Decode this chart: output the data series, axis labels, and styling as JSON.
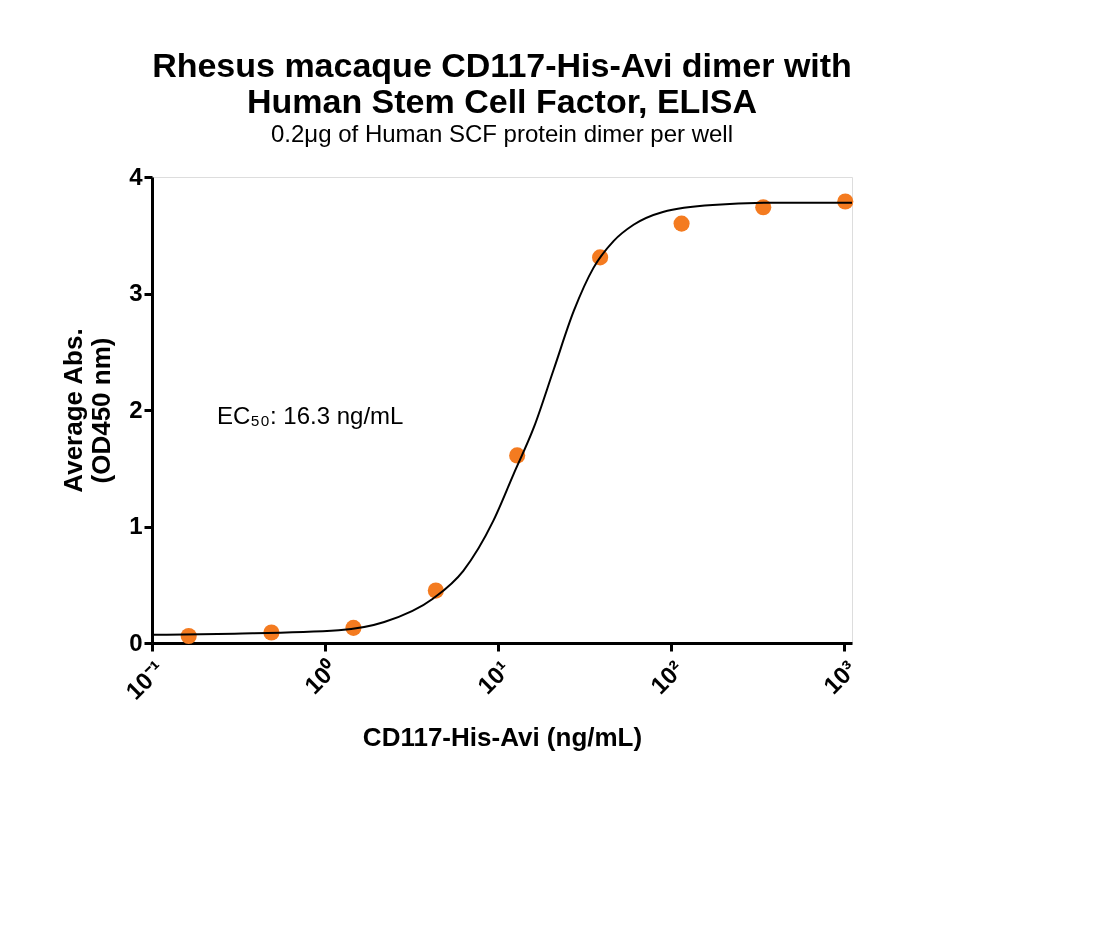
{
  "chart_data": {
    "type": "scatter",
    "title": "Rhesus macaque CD117-His-Avi dimer with Human Stem Cell Factor, ELISA",
    "subtitle": "0.2μg of Human SCF protein dimer per well",
    "xlabel": "CD117-His-Avi  (ng/mL)",
    "ylabel": "Average Abs. (OD450 nm)",
    "log": "x",
    "xlim": [
      0.1,
      1111
    ],
    "xticks": [
      {
        "value": 0.1,
        "label": "10⁻¹"
      },
      {
        "value": 1,
        "label": "10⁰"
      },
      {
        "value": 10,
        "label": "10¹"
      },
      {
        "value": 100,
        "label": "10²"
      },
      {
        "value": 1000,
        "label": "10³"
      }
    ],
    "ylim": [
      0,
      4
    ],
    "yticks": [
      0,
      1,
      2,
      3,
      4
    ],
    "grid": false,
    "annotations": [
      "EC₅₀: 16.3 ng/mL"
    ],
    "series": [
      {
        "color": "#f47b20",
        "marker": "circle",
        "x": [
          0.163,
          0.49,
          1.46,
          4.37,
          12.9,
          38.9,
          115,
          341,
          1016
        ],
        "values": [
          0.06,
          0.09,
          0.13,
          0.45,
          1.61,
          3.31,
          3.6,
          3.74,
          3.79
        ]
      },
      {
        "type": "line",
        "color": "#000000",
        "marker": "none",
        "line_style": "solid",
        "x": [
          0.1,
          0.3,
          1.2,
          2.2,
          4.2,
          6.3,
          9.4,
          12.3,
          16.1,
          21,
          27.4,
          35.6,
          46.5,
          60.7,
          89.7,
          174,
          438,
          1111
        ],
        "values": [
          0.07,
          0.08,
          0.11,
          0.18,
          0.38,
          0.62,
          1.05,
          1.45,
          1.85,
          2.35,
          2.85,
          3.22,
          3.45,
          3.59,
          3.7,
          3.76,
          3.78,
          3.78
        ]
      }
    ]
  }
}
